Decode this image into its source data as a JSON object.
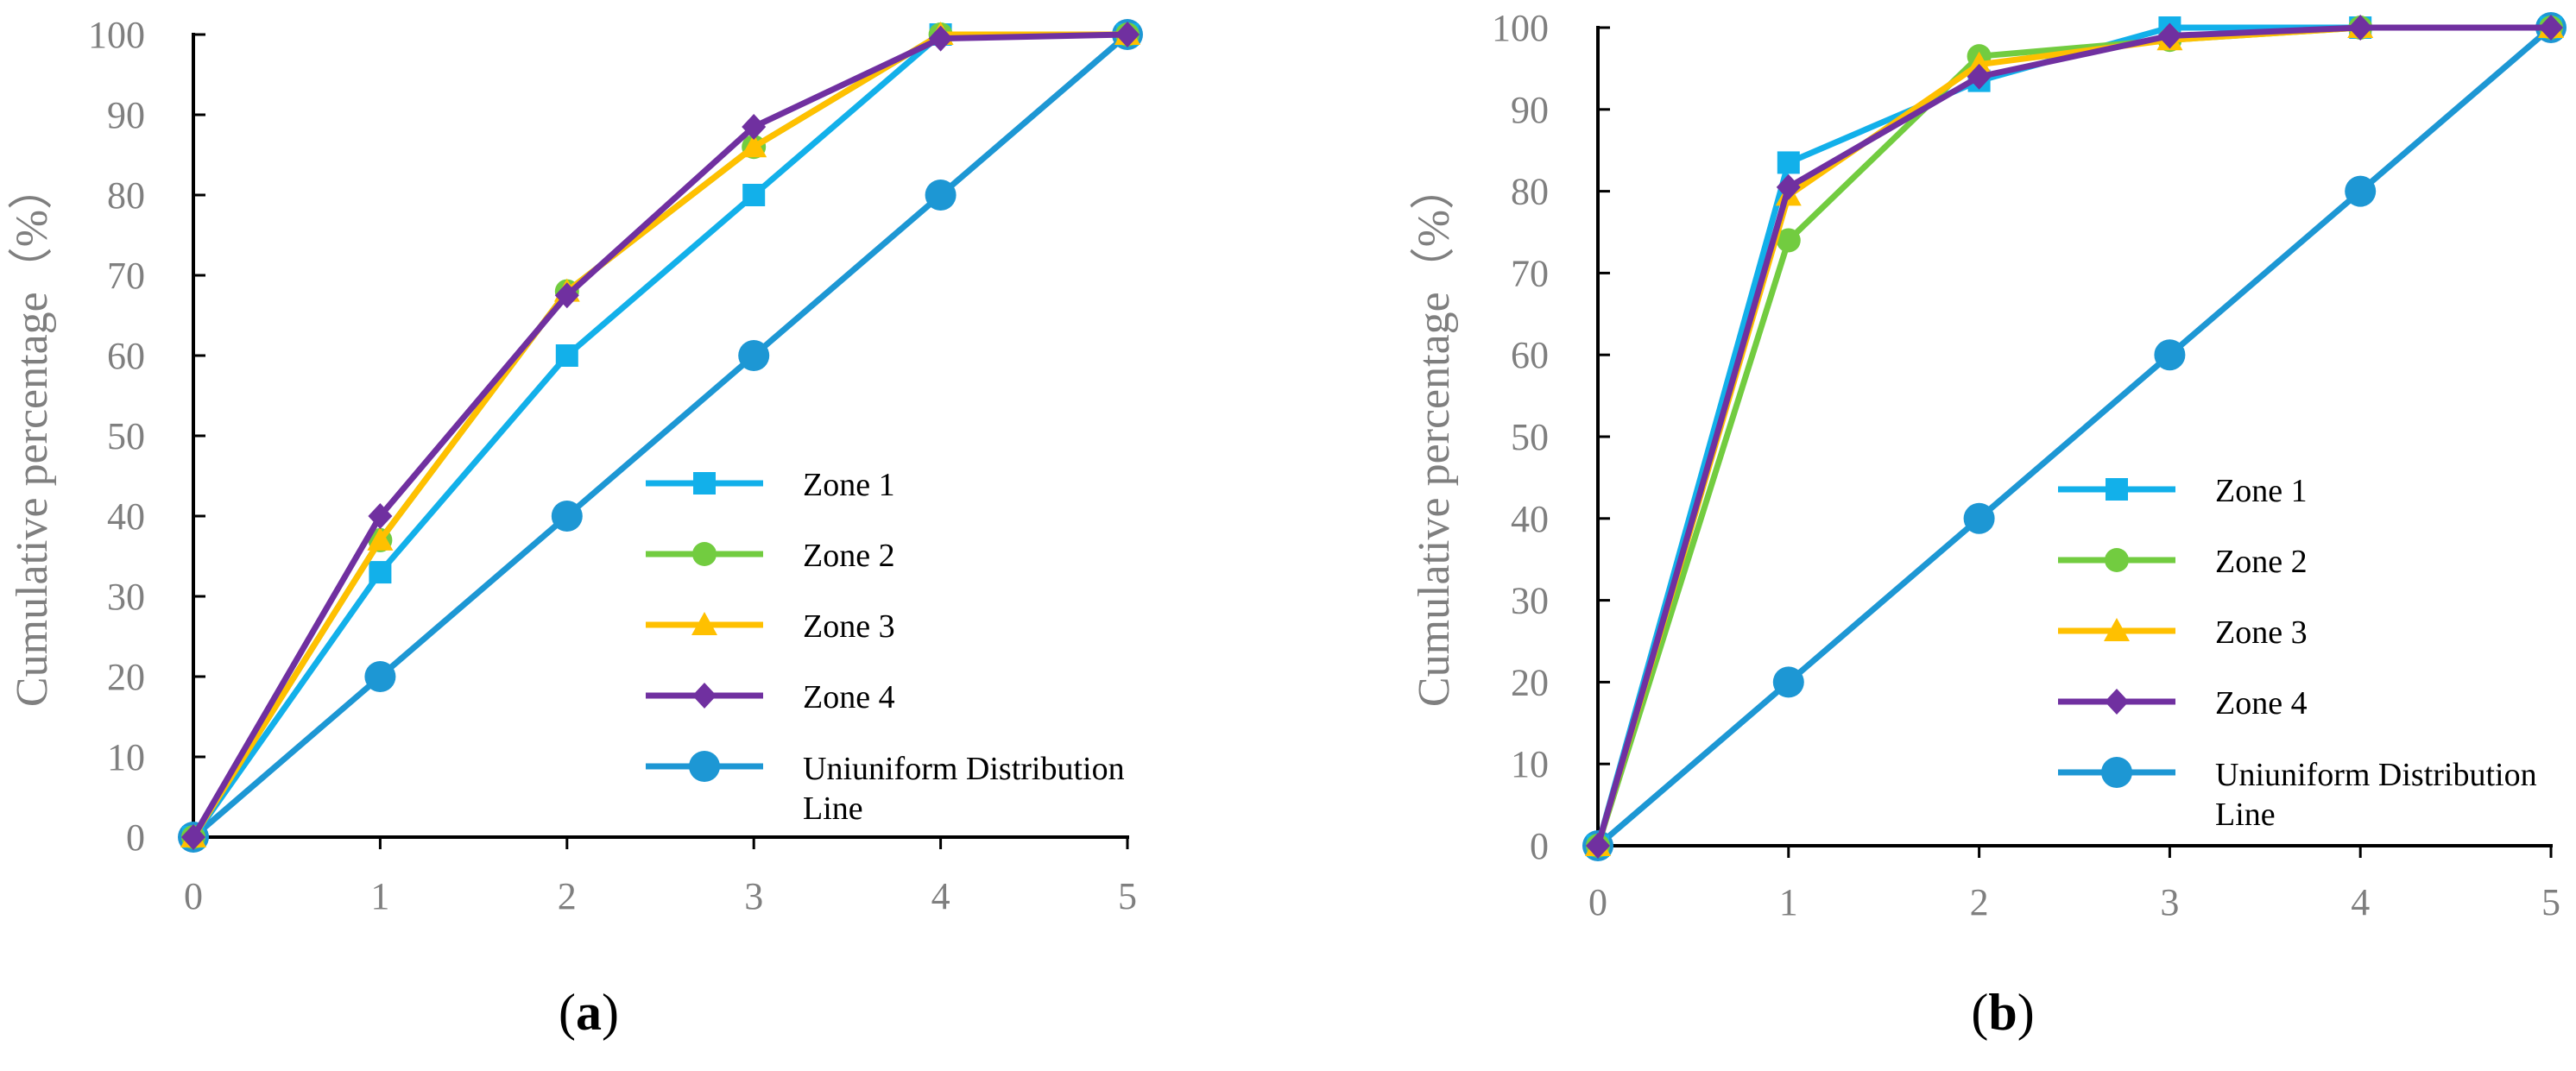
{
  "colors": {
    "zone1": "#12b0ea",
    "zone2": "#72cc40",
    "zone3": "#ffc000",
    "zone4": "#7030a0",
    "uniform": "#1d97d4",
    "axis": "#000000",
    "tick_label": "#7f7f7f",
    "axis_title": "#7f7f7f",
    "legend_text": "#000000",
    "caption": "#000000"
  },
  "chart_data": [
    {
      "type": "line",
      "caption": "(a)",
      "caption_letter": "a",
      "ylabel": "Cumulative percentage（%）",
      "xlabel": "",
      "xlim": [
        0,
        5
      ],
      "ylim": [
        0,
        100
      ],
      "x_ticks": [
        "0",
        "1",
        "2",
        "3",
        "4",
        "5"
      ],
      "y_ticks": [
        "0",
        "10",
        "20",
        "30",
        "40",
        "50",
        "60",
        "70",
        "80",
        "90",
        "100"
      ],
      "x": [
        0,
        1,
        2,
        3,
        4,
        5
      ],
      "series": [
        {
          "key": "zone1",
          "name": "Zone 1",
          "marker": "square",
          "values": [
            0,
            33,
            60,
            80,
            100,
            100
          ]
        },
        {
          "key": "zone2",
          "name": "Zone 2",
          "marker": "circle",
          "values": [
            0,
            37,
            68,
            86,
            100,
            100
          ]
        },
        {
          "key": "zone3",
          "name": "Zone 3",
          "marker": "triangle",
          "values": [
            0,
            37,
            68,
            86,
            100,
            100
          ]
        },
        {
          "key": "zone4",
          "name": "Zone 4",
          "marker": "diamond",
          "values": [
            0,
            40,
            67.5,
            88.5,
            99.5,
            100
          ]
        },
        {
          "key": "uniform",
          "name": "Uniuniform Distribution Line",
          "legend_lines": [
            "Uniuniform Distribution",
            "Line"
          ],
          "marker": "bigcircle",
          "values": [
            0,
            20,
            40,
            60,
            80,
            100
          ]
        }
      ]
    },
    {
      "type": "line",
      "caption": "(b)",
      "caption_letter": "b",
      "ylabel": "Cumulative percentage（%）",
      "xlabel": "",
      "xlim": [
        0,
        5
      ],
      "ylim": [
        0,
        100
      ],
      "x_ticks": [
        "0",
        "1",
        "2",
        "3",
        "4",
        "5"
      ],
      "y_ticks": [
        "0",
        "10",
        "20",
        "30",
        "40",
        "50",
        "60",
        "70",
        "80",
        "90",
        "100"
      ],
      "x": [
        0,
        1,
        2,
        3,
        4,
        5
      ],
      "series": [
        {
          "key": "zone1",
          "name": "Zone 1",
          "marker": "square",
          "values": [
            0,
            83.5,
            93.5,
            100,
            100,
            100
          ]
        },
        {
          "key": "zone2",
          "name": "Zone 2",
          "marker": "circle",
          "values": [
            0,
            74,
            96.5,
            98.5,
            100,
            100
          ]
        },
        {
          "key": "zone3",
          "name": "Zone 3",
          "marker": "triangle",
          "values": [
            0,
            79.5,
            95.5,
            98.5,
            100,
            100
          ]
        },
        {
          "key": "zone4",
          "name": "Zone 4",
          "marker": "diamond",
          "values": [
            0,
            80.5,
            94,
            99,
            100,
            100
          ]
        },
        {
          "key": "uniform",
          "name": "Uniuniform Distribution Line",
          "legend_lines": [
            "Uniuniform Distribution",
            "Line"
          ],
          "marker": "bigcircle",
          "values": [
            0,
            20,
            40,
            60,
            80,
            100
          ]
        }
      ]
    }
  ]
}
